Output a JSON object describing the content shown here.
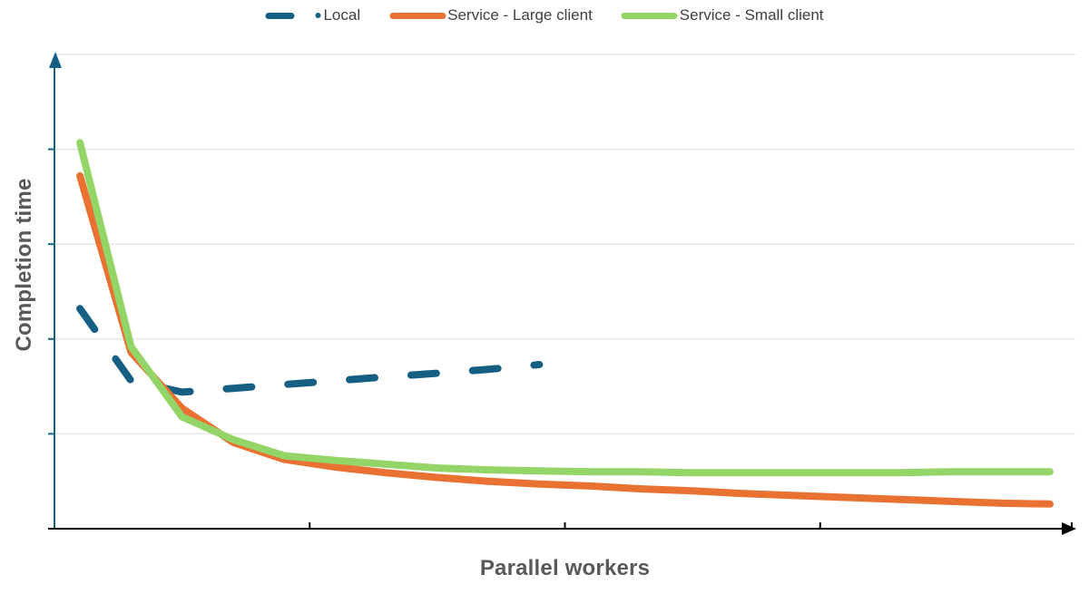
{
  "chart_data": {
    "type": "line",
    "title": "",
    "xlabel": "Parallel workers",
    "ylabel": "Completion time",
    "x_axis": {
      "tick_labels": [],
      "categories_count": 20,
      "tick_marks_every_categories": 5,
      "arrow_at_end": true
    },
    "y_axis": {
      "tick_labels": [],
      "range_gridline_units": [
        0,
        5
      ],
      "gridline_every": 1,
      "arrow_at_end": true
    },
    "grid": "horizontal-only",
    "legend_position": "top-center",
    "note": "Axes have no numeric labels; series values are relative completion-time units estimated from unlabeled gridlines (1 unit = 1 gridline spacing).",
    "series": [
      {
        "name": "Local",
        "color": "#156082",
        "line_style": "dashed",
        "legend_marker": "dash-and-dot",
        "x_categories": [
          1,
          2,
          3,
          4,
          5,
          6,
          7,
          8,
          9,
          10
        ],
        "values": [
          2.32,
          1.56,
          1.44,
          1.48,
          1.52,
          1.56,
          1.6,
          1.64,
          1.68,
          1.73
        ]
      },
      {
        "name": "Service - Large client",
        "color": "#E97132",
        "line_style": "solid",
        "legend_marker": "line",
        "x_categories": [
          1,
          2,
          3,
          4,
          5,
          6,
          7,
          8,
          9,
          10,
          11,
          12,
          13,
          14,
          15,
          16,
          17,
          18,
          19,
          20
        ],
        "values": [
          3.72,
          1.86,
          1.27,
          0.91,
          0.73,
          0.65,
          0.59,
          0.54,
          0.5,
          0.47,
          0.45,
          0.42,
          0.4,
          0.37,
          0.35,
          0.33,
          0.31,
          0.29,
          0.27,
          0.26
        ]
      },
      {
        "name": "Service - Small client",
        "color": "#94D567",
        "line_style": "solid",
        "legend_marker": "line",
        "x_categories": [
          1,
          2,
          3,
          4,
          5,
          6,
          7,
          8,
          9,
          10,
          11,
          12,
          13,
          14,
          15,
          16,
          17,
          18,
          19,
          20
        ],
        "values": [
          4.07,
          1.92,
          1.18,
          0.94,
          0.77,
          0.72,
          0.68,
          0.64,
          0.62,
          0.61,
          0.6,
          0.6,
          0.59,
          0.59,
          0.59,
          0.59,
          0.59,
          0.6,
          0.6,
          0.6
        ]
      }
    ]
  },
  "style_colors": {
    "gridline": "#E7E7E7",
    "x_axis_line": "#000000",
    "y_axis_line": "#156082",
    "legend_text": "#404040",
    "axis_title_text": "#595959"
  }
}
